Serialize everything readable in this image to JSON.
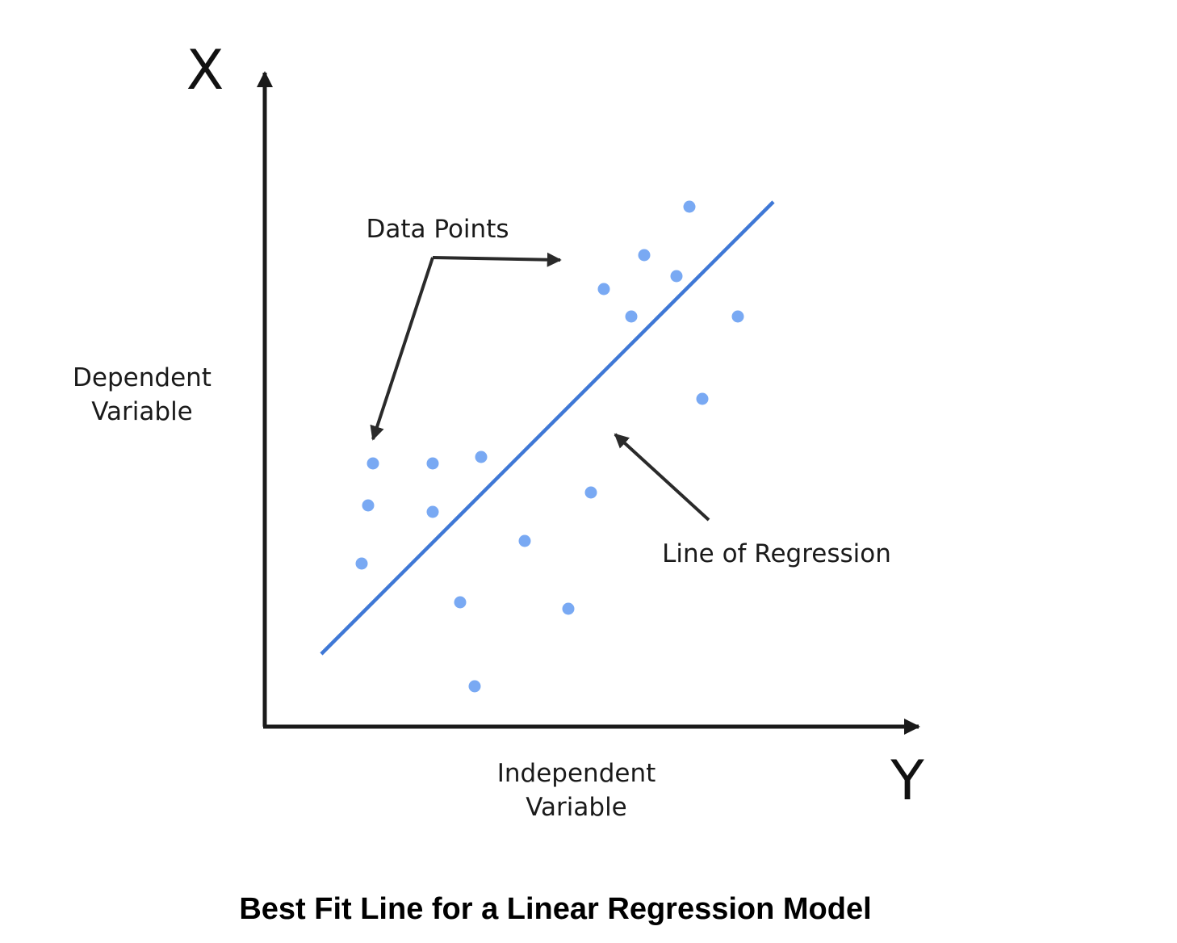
{
  "colors": {
    "axis": "#1a1a1a",
    "regression_line": "#3f78d6",
    "data_point": "#79a9f3",
    "annotation_arrow": "#2a2a2a",
    "text": "#1a1a1a"
  },
  "axes": {
    "vertical_letter": "X",
    "horizontal_letter": "Y",
    "vertical_label_line1": "Dependent",
    "vertical_label_line2": "Variable",
    "horizontal_label_line1": "Independent",
    "horizontal_label_line2": "Variable"
  },
  "annotations": {
    "data_points": "Data Points",
    "line_of_regression": "Line of Regression"
  },
  "caption": "Best Fit Line for a Linear Regression Model"
}
